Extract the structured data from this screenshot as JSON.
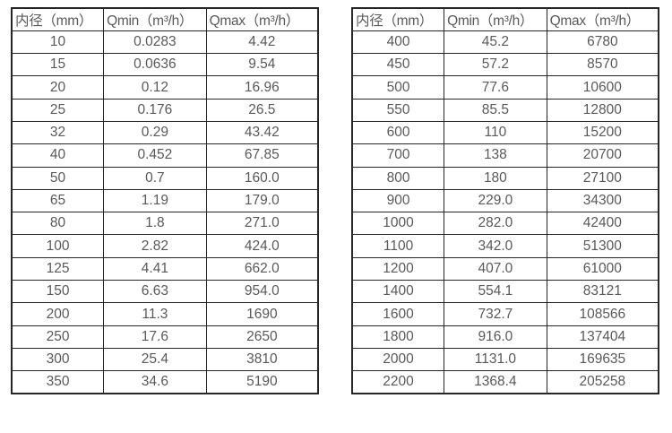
{
  "page": {
    "background_color": "#ffffff",
    "border_color": "#262626",
    "text_color": "#595959"
  },
  "tables": [
    {
      "name": "left",
      "headers": [
        "内径（mm）",
        "Qmin（m³/h）",
        "Qmax（m³/h）"
      ],
      "rows": [
        [
          "10",
          "0.0283",
          "4.42"
        ],
        [
          "15",
          "0.0636",
          "9.54"
        ],
        [
          "20",
          "0.12",
          "16.96"
        ],
        [
          "25",
          "0.176",
          "26.5"
        ],
        [
          "32",
          "0.29",
          "43.42"
        ],
        [
          "40",
          "0.452",
          "67.85"
        ],
        [
          "50",
          "0.7",
          "160.0"
        ],
        [
          "65",
          "1.19",
          "179.0"
        ],
        [
          "80",
          "1.8",
          "271.0"
        ],
        [
          "100",
          "2.82",
          "424.0"
        ],
        [
          "125",
          "4.41",
          "662.0"
        ],
        [
          "150",
          "6.63",
          "954.0"
        ],
        [
          "200",
          "11.3",
          "1690"
        ],
        [
          "250",
          "17.6",
          "2650"
        ],
        [
          "300",
          "25.4",
          "3810"
        ],
        [
          "350",
          "34.6",
          "5190"
        ]
      ]
    },
    {
      "name": "right",
      "headers": [
        "内径（mm）",
        "Qmin（m³/h）",
        "Qmax（m³/h）"
      ],
      "rows": [
        [
          "400",
          "45.2",
          "6780"
        ],
        [
          "450",
          "57.2",
          "8570"
        ],
        [
          "500",
          "77.6",
          "10600"
        ],
        [
          "550",
          "85.5",
          "12800"
        ],
        [
          "600",
          "110",
          "15200"
        ],
        [
          "700",
          "138",
          "20700"
        ],
        [
          "800",
          "180",
          "27100"
        ],
        [
          "900",
          "229.0",
          "34300"
        ],
        [
          "1000",
          "282.0",
          "42400"
        ],
        [
          "1100",
          "342.0",
          "51300"
        ],
        [
          "1200",
          "407.0",
          "61000"
        ],
        [
          "1400",
          "554.1",
          "83121"
        ],
        [
          "1600",
          "732.7",
          "108566"
        ],
        [
          "1800",
          "916.0",
          "137404"
        ],
        [
          "2000",
          "1131.0",
          "169635"
        ],
        [
          "2200",
          "1368.4",
          "205258"
        ]
      ]
    }
  ]
}
